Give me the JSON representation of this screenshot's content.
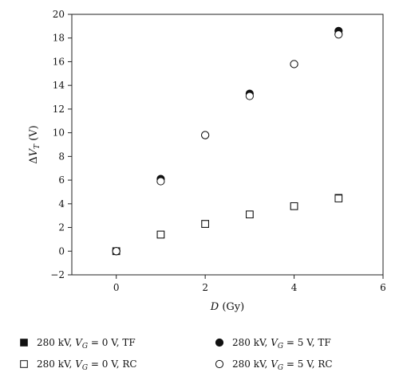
{
  "chart_data": {
    "type": "scatter",
    "xlabel": "D (Gy)",
    "ylabel": "ΔV_T (V)",
    "xlim": [
      -1,
      6
    ],
    "ylim": [
      -2,
      20
    ],
    "x_ticks": [
      0,
      2,
      4,
      6
    ],
    "y_ticks": [
      -2,
      0,
      2,
      4,
      6,
      8,
      10,
      12,
      14,
      16,
      18,
      20
    ],
    "grid": false,
    "legend_position": "bottom",
    "series": [
      {
        "name": "280 kV, V_G = 0 V, TF",
        "marker": "filled-square",
        "x": [
          0,
          1,
          2,
          3,
          4,
          5
        ],
        "y": [
          0,
          1.4,
          2.3,
          3.1,
          3.8,
          4.5
        ]
      },
      {
        "name": "280 kV, V_G = 5 V, TF",
        "marker": "filled-circle",
        "x": [
          0,
          1,
          2,
          3,
          4,
          5
        ],
        "y": [
          0,
          6.1,
          9.8,
          13.3,
          15.8,
          18.6
        ]
      },
      {
        "name": "280 kV, V_G = 0 V, RC",
        "marker": "open-square",
        "x": [
          0,
          1,
          2,
          3,
          4,
          5
        ],
        "y": [
          0,
          1.4,
          2.3,
          3.1,
          3.8,
          4.45
        ]
      },
      {
        "name": "280 kV, V_G = 5 V, RC",
        "marker": "open-circle",
        "x": [
          0,
          1,
          2,
          3,
          4,
          5
        ],
        "y": [
          0,
          5.9,
          9.8,
          13.1,
          15.8,
          18.3
        ]
      }
    ],
    "legend_labels": [
      {
        "prefix": "280 kV, ",
        "italic": "V",
        "sub": "G",
        "suffix": " = 0 V, TF"
      },
      {
        "prefix": "280 kV, ",
        "italic": "V",
        "sub": "G",
        "suffix": " = 5 V, TF"
      },
      {
        "prefix": "280 kV, ",
        "italic": "V",
        "sub": "G",
        "suffix": " = 0 V, RC"
      },
      {
        "prefix": "280 kV, ",
        "italic": "V",
        "sub": "G",
        "suffix": " = 5 V, RC"
      }
    ],
    "axis_title_parts": {
      "x": {
        "italic": "D",
        "rest": " (Gy)"
      },
      "y": {
        "delta": "Δ",
        "italic": "V",
        "sub": "T",
        "rest": " (V)"
      }
    }
  }
}
